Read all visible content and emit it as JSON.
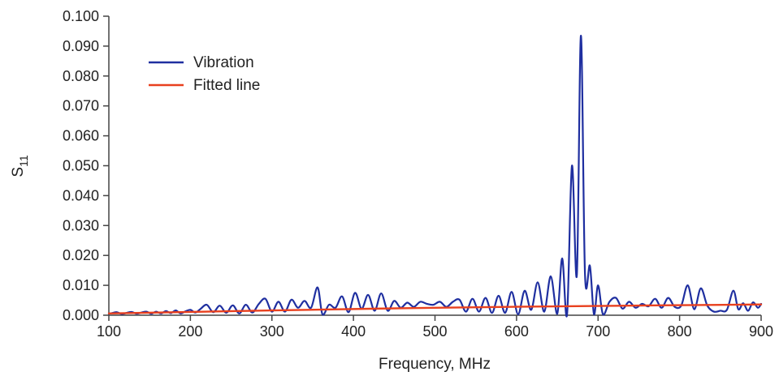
{
  "chart_data": {
    "type": "line",
    "title": "",
    "xlabel": "Frequency, MHz",
    "ylabel": "S11",
    "ylabel_main": "S",
    "ylabel_sub": "11",
    "xlim": [
      100,
      900
    ],
    "ylim": [
      0.0,
      0.1
    ],
    "xticks": [
      "100",
      "200",
      "300",
      "400",
      "500",
      "600",
      "700",
      "800",
      "900"
    ],
    "yticks": [
      "0.000",
      "0.010",
      "0.020",
      "0.030",
      "0.040",
      "0.050",
      "0.060",
      "0.070",
      "0.080",
      "0.090",
      "0.100"
    ],
    "grid": false,
    "legend_position": "top-left",
    "series": [
      {
        "name": "Vibration",
        "color": "#1f2fa0",
        "x": [
          100,
          105,
          110,
          116,
          122,
          128,
          134,
          140,
          146,
          152,
          158,
          164,
          170,
          176,
          182,
          188,
          194,
          200,
          206,
          212,
          220,
          228,
          236,
          244,
          252,
          260,
          268,
          276,
          284,
          292,
          300,
          308,
          316,
          324,
          332,
          340,
          348,
          356,
          362,
          370,
          378,
          386,
          394,
          402,
          410,
          418,
          426,
          434,
          442,
          450,
          458,
          466,
          474,
          482,
          490,
          498,
          506,
          514,
          522,
          530,
          538,
          546,
          554,
          562,
          570,
          578,
          586,
          594,
          602,
          610,
          618,
          626,
          634,
          642,
          650,
          656,
          662,
          668,
          674,
          679,
          684,
          690,
          695,
          700,
          706,
          714,
          722,
          730,
          738,
          746,
          754,
          762,
          770,
          778,
          786,
          794,
          802,
          810,
          818,
          826,
          834,
          842,
          850,
          858,
          866,
          872,
          878,
          884,
          890,
          896,
          900
        ],
        "y": [
          0.0005,
          0.0008,
          0.001,
          0.0004,
          0.0008,
          0.0011,
          0.0005,
          0.0009,
          0.0012,
          0.0005,
          0.0012,
          0.0006,
          0.0014,
          0.0007,
          0.0016,
          0.0006,
          0.0013,
          0.0018,
          0.0009,
          0.002,
          0.0035,
          0.001,
          0.0032,
          0.0008,
          0.0033,
          0.0006,
          0.0035,
          0.0009,
          0.0038,
          0.0055,
          0.0012,
          0.0045,
          0.0012,
          0.0052,
          0.0025,
          0.0048,
          0.0025,
          0.0093,
          0.0003,
          0.0035,
          0.0025,
          0.0063,
          0.001,
          0.0075,
          0.0022,
          0.0068,
          0.0015,
          0.0073,
          0.0015,
          0.0048,
          0.0025,
          0.0042,
          0.0028,
          0.0045,
          0.0038,
          0.0035,
          0.0045,
          0.0028,
          0.0045,
          0.0052,
          0.0012,
          0.0055,
          0.0012,
          0.0058,
          0.0008,
          0.0065,
          0.0008,
          0.0078,
          0.0003,
          0.0082,
          0.0018,
          0.011,
          0.0012,
          0.013,
          0.0005,
          0.019,
          0.0003,
          0.05,
          0.0135,
          0.0935,
          0.0135,
          0.0165,
          0.0003,
          0.01,
          0.0003,
          0.0045,
          0.0058,
          0.0022,
          0.0045,
          0.0025,
          0.0038,
          0.003,
          0.0055,
          0.0025,
          0.0058,
          0.0028,
          0.0032,
          0.01,
          0.002,
          0.009,
          0.0032,
          0.0012,
          0.0015,
          0.0018,
          0.0082,
          0.002,
          0.004,
          0.0015,
          0.0043,
          0.0025,
          0.0038
        ]
      },
      {
        "name": "Fitted line",
        "color": "#e8401e",
        "x": [
          100,
          300,
          500,
          700,
          900
        ],
        "y": [
          0.0006,
          0.0016,
          0.0025,
          0.0031,
          0.0036
        ]
      }
    ]
  }
}
